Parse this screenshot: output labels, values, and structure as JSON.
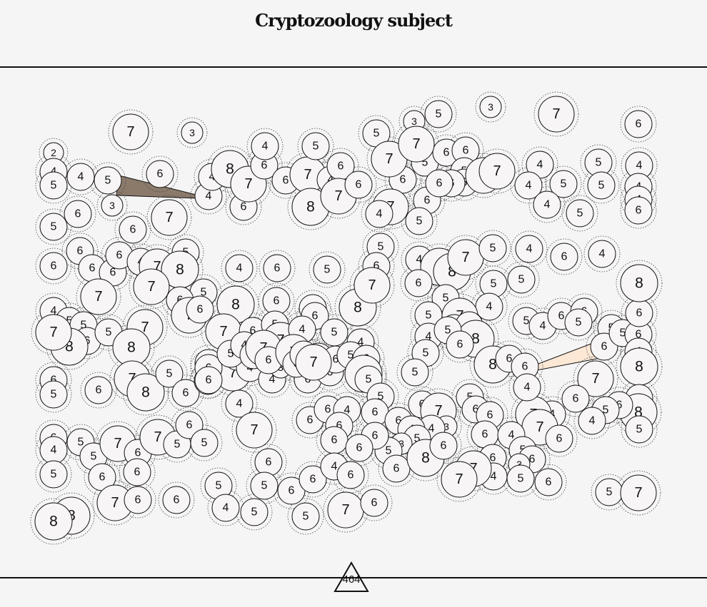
{
  "title": "Cryptozoology subject",
  "footer": {
    "page_number": "464"
  },
  "colors": {
    "background": "#f6f5f5",
    "bubble_fill": "#f7f5f5",
    "stroke": "#111111",
    "dark_wedge": "#8b7a6a",
    "light_wedge": "#fde8d6"
  },
  "bubble_values": [
    7,
    3,
    2,
    4,
    5,
    4,
    5,
    3,
    6,
    4,
    4,
    3,
    8,
    6,
    7,
    6,
    4,
    6,
    7,
    5,
    4,
    6,
    8,
    7,
    5,
    3,
    5,
    3,
    7,
    6,
    6,
    6,
    7,
    5,
    6,
    6,
    5,
    7,
    6,
    6,
    5,
    7,
    7,
    6,
    5,
    6,
    6,
    7,
    7,
    4,
    5,
    4,
    4,
    5,
    4,
    5,
    5,
    4,
    4,
    4,
    6,
    5,
    6,
    6,
    6,
    6,
    6,
    4,
    7,
    5,
    8,
    7,
    7,
    5,
    6,
    7,
    6,
    4,
    5,
    5,
    6,
    5,
    7,
    8,
    8,
    7,
    4,
    6,
    5,
    8,
    6,
    5,
    8,
    6,
    7,
    6,
    5,
    7,
    4,
    5,
    4,
    5,
    6,
    7,
    4,
    8,
    8,
    7,
    5,
    4,
    6,
    4,
    6,
    5,
    5,
    4,
    5,
    5,
    7,
    6,
    4,
    8,
    4,
    5,
    6,
    5,
    5,
    8,
    6,
    6,
    5,
    4,
    6,
    6,
    5,
    5,
    6,
    5,
    6,
    4,
    6,
    8,
    7,
    8,
    6,
    8,
    5,
    6,
    5,
    4,
    6,
    4,
    7,
    7,
    6,
    4,
    5,
    6,
    6,
    6,
    5,
    6,
    7,
    8,
    5,
    6,
    5,
    6,
    7,
    5,
    4,
    4,
    3,
    4,
    6,
    6,
    6,
    6,
    5,
    6,
    8,
    5,
    4,
    7,
    6,
    6,
    4,
    6,
    6,
    5,
    6,
    6,
    6,
    7,
    3,
    4,
    4,
    5,
    3,
    5,
    6,
    6,
    6,
    4,
    5,
    5,
    7,
    6,
    7,
    5,
    6,
    5,
    6,
    6,
    5,
    7,
    6,
    6,
    6,
    5,
    4,
    5,
    5,
    6,
    6,
    4,
    6,
    6,
    8,
    6,
    6,
    4,
    5,
    6,
    3,
    6,
    4,
    7,
    7,
    5,
    6,
    5,
    7,
    6,
    5,
    7,
    8,
    8,
    6,
    6,
    5,
    4,
    6,
    7,
    6,
    7,
    6,
    5,
    7,
    6,
    4,
    3,
    5,
    4,
    8,
    3,
    4,
    5,
    5,
    4,
    2,
    5,
    3,
    2,
    4,
    3,
    5,
    6,
    5,
    5,
    3
  ],
  "wedges": [
    {
      "from": 4,
      "to": 4,
      "shade": "dark"
    },
    {
      "from": 5,
      "to": 4,
      "shade": "light"
    }
  ]
}
